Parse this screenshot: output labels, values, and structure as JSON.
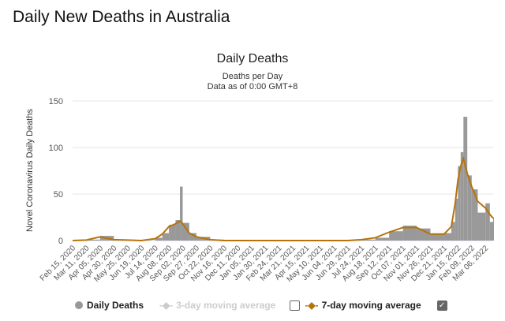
{
  "page_title": "Daily New Deaths in Australia",
  "chart_data": {
    "type": "bar",
    "title": "Daily Deaths",
    "subtitle": "Deaths per Day",
    "subtitle2": "Data as of 0:00 GMT+8",
    "ylabel": "Novel Coronavirus Daily Deaths",
    "ylim": [
      0,
      150
    ],
    "yticks": [
      0,
      50,
      100,
      150
    ],
    "grid": true,
    "legend_placement": "bottom",
    "colors": {
      "bars": "#999999",
      "avg7": "#b8720a",
      "avg3": "#cccccc"
    },
    "xticks": [
      "Feb 15, 2020",
      "Mar 11, 2020",
      "Apr 05, 2020",
      "Apr 30, 2020",
      "May 25, 2020",
      "Jun 19, 2020",
      "Jul 14, 2020",
      "Aug 08, 2020",
      "Sep 02, 2020",
      "Sep 27, 2020",
      "Oct 22, 2020",
      "Nov 16, 2020",
      "Dec 11, 2020",
      "Jan 05, 2021",
      "Jan 30, 2021",
      "Feb 24, 2021",
      "Mar 21, 2021",
      "Apr 15, 2021",
      "May 10, 2021",
      "Jun 04, 2021",
      "Jun 29, 2021",
      "Jul 24, 2021",
      "Aug 18, 2021",
      "Sep 12, 2021",
      "Oct 07, 2021",
      "Nov 01, 2021",
      "Nov 26, 2021",
      "Dec 21, 2021",
      "Jan 15, 2022",
      "Feb 09, 2022",
      "Mar 06, 2022"
    ],
    "x": [
      "2020-02-15",
      "2020-03-11",
      "2020-04-05",
      "2020-04-30",
      "2020-05-25",
      "2020-06-19",
      "2020-07-14",
      "2020-07-27",
      "2020-08-08",
      "2020-08-20",
      "2020-08-28",
      "2020-09-02",
      "2020-09-14",
      "2020-09-27",
      "2020-10-22",
      "2020-11-16",
      "2020-12-11",
      "2021-01-05",
      "2021-01-30",
      "2021-02-24",
      "2021-03-21",
      "2021-04-15",
      "2021-05-10",
      "2021-06-04",
      "2021-06-29",
      "2021-07-24",
      "2021-08-18",
      "2021-09-12",
      "2021-10-07",
      "2021-11-01",
      "2021-11-26",
      "2021-12-21",
      "2022-01-03",
      "2022-01-10",
      "2022-01-15",
      "2022-01-20",
      "2022-01-25",
      "2022-02-01",
      "2022-02-09",
      "2022-02-20",
      "2022-03-06",
      "2022-03-14",
      "2022-03-20"
    ],
    "series": [
      {
        "name": "Daily Deaths",
        "values": [
          0,
          1,
          5,
          1,
          0,
          0,
          3,
          8,
          17,
          22,
          58,
          19,
          8,
          4,
          1,
          0,
          0,
          0,
          0,
          0,
          0,
          0,
          0,
          0,
          0,
          1,
          3,
          10,
          16,
          13,
          7,
          8,
          20,
          45,
          80,
          95,
          133,
          70,
          55,
          30,
          40,
          20,
          25
        ]
      },
      {
        "name": "7-day moving average",
        "values": [
          0,
          0.5,
          4,
          1,
          0.5,
          0,
          2,
          7,
          15,
          18,
          21,
          18,
          8,
          4,
          1,
          0,
          0,
          0,
          0,
          0,
          0,
          0,
          0,
          0,
          0,
          1,
          3,
          9,
          14,
          14,
          7,
          7,
          15,
          40,
          65,
          80,
          88,
          72,
          58,
          42,
          35,
          28,
          24
        ]
      }
    ]
  },
  "legend": {
    "daily": "Daily Deaths",
    "avg3": "3-day moving average",
    "avg7": "7-day moving average",
    "avg3_checked": false,
    "avg7_checked": true,
    "check_mark": "✓"
  }
}
